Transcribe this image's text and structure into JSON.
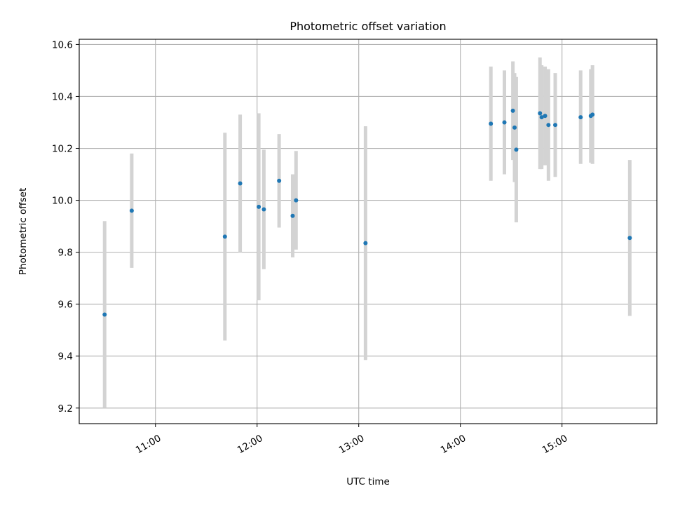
{
  "chart_data": {
    "type": "scatter",
    "title": "Photometric offset variation",
    "xlabel": "UTC time",
    "ylabel": "Photometric offset",
    "x_axis": {
      "kind": "time",
      "range": [
        "10:15",
        "15:56"
      ],
      "ticks": [
        "11:00",
        "12:00",
        "13:00",
        "14:00",
        "15:00"
      ]
    },
    "y_axis": {
      "range": [
        9.14,
        10.62
      ],
      "ticks": [
        "9.2",
        "9.4",
        "9.6",
        "9.8",
        "10.0",
        "10.2",
        "10.4",
        "10.6"
      ]
    },
    "grid": true,
    "errorbar_color": "#d3d3d3",
    "marker_color": "#1f77b4",
    "points": [
      {
        "time": "10:30",
        "y": 9.56,
        "err": 0.36
      },
      {
        "time": "10:46",
        "y": 9.96,
        "err": 0.22
      },
      {
        "time": "11:41",
        "y": 9.86,
        "err": 0.4
      },
      {
        "time": "11:50",
        "y": 10.065,
        "err": 0.265
      },
      {
        "time": "12:01",
        "y": 9.975,
        "err": 0.36
      },
      {
        "time": "12:04",
        "y": 9.965,
        "err": 0.23
      },
      {
        "time": "12:13",
        "y": 10.075,
        "err": 0.18
      },
      {
        "time": "12:21",
        "y": 9.94,
        "err": 0.16
      },
      {
        "time": "12:23",
        "y": 10.0,
        "err": 0.19
      },
      {
        "time": "13:04",
        "y": 9.835,
        "err": 0.45
      },
      {
        "time": "14:18",
        "y": 10.295,
        "err": 0.22
      },
      {
        "time": "14:26",
        "y": 10.3,
        "err": 0.2
      },
      {
        "time": "14:31",
        "y": 10.345,
        "err": 0.19
      },
      {
        "time": "14:32",
        "y": 10.28,
        "err": 0.21
      },
      {
        "time": "14:33",
        "y": 10.195,
        "err": 0.28
      },
      {
        "time": "14:47",
        "y": 10.335,
        "err": 0.215
      },
      {
        "time": "14:48",
        "y": 10.32,
        "err": 0.2
      },
      {
        "time": "14:50",
        "y": 10.325,
        "err": 0.19
      },
      {
        "time": "14:52",
        "y": 10.29,
        "err": 0.215
      },
      {
        "time": "14:56",
        "y": 10.29,
        "err": 0.2
      },
      {
        "time": "15:11",
        "y": 10.32,
        "err": 0.18
      },
      {
        "time": "15:17",
        "y": 10.325,
        "err": 0.18
      },
      {
        "time": "15:18",
        "y": 10.33,
        "err": 0.19
      },
      {
        "time": "15:40",
        "y": 9.855,
        "err": 0.3
      }
    ]
  }
}
